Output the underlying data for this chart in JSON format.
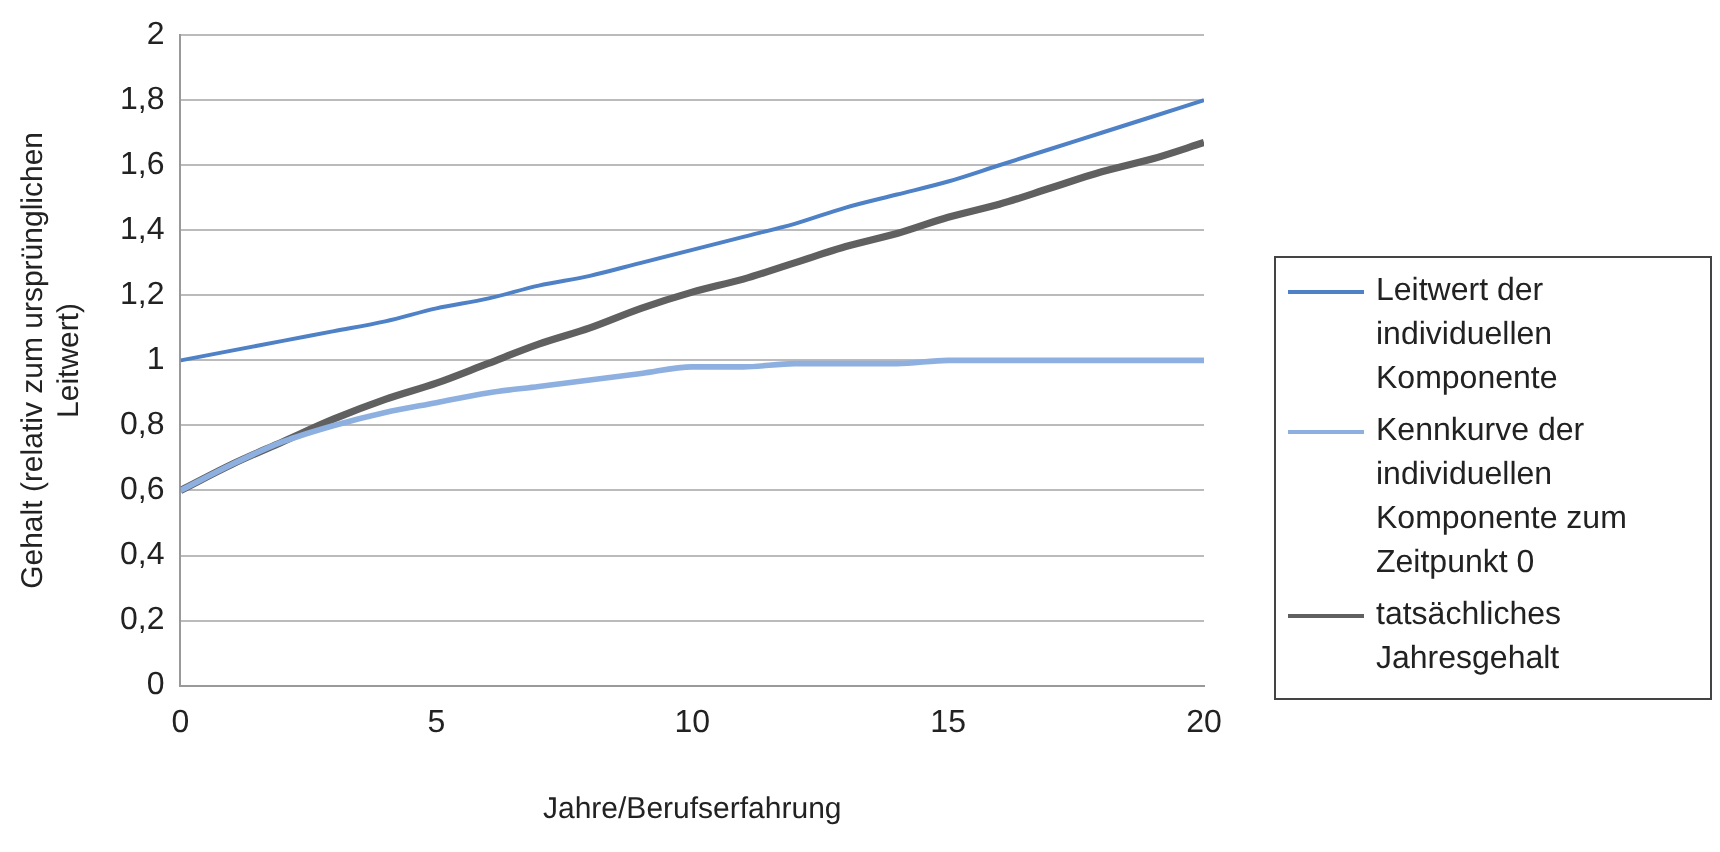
{
  "chart_data": {
    "type": "line",
    "xlabel": "Jahre/Berufserfahrung",
    "ylabel": "Gehalt (relativ zum ursprünglichen Leitwert)",
    "x": [
      0,
      1,
      2,
      3,
      4,
      5,
      6,
      7,
      8,
      9,
      10,
      11,
      12,
      13,
      14,
      15,
      16,
      17,
      18,
      19,
      20
    ],
    "xlim": [
      0,
      20
    ],
    "xticks": [
      0,
      5,
      10,
      15,
      20
    ],
    "ylim": [
      0,
      2
    ],
    "yticks": [
      0,
      {
        "value": 0.2,
        "label": "0,2"
      },
      {
        "value": 0.4,
        "label": "0,4"
      },
      {
        "value": 0.6,
        "label": "0,6"
      },
      {
        "value": 0.8,
        "label": "0,8"
      },
      1,
      {
        "value": 1.2,
        "label": "1,2"
      },
      {
        "value": 1.4,
        "label": "1,4"
      },
      {
        "value": 1.6,
        "label": "1,6"
      },
      {
        "value": 1.8,
        "label": "1,8"
      },
      2
    ],
    "grid": "y",
    "legend": "right",
    "marker": "none",
    "line_style": "solid",
    "series": [
      {
        "name": "Leitwert der individuellen Komponente",
        "color": "#4f81c7",
        "values": [
          1.0,
          1.03,
          1.06,
          1.09,
          1.12,
          1.16,
          1.19,
          1.23,
          1.26,
          1.3,
          1.34,
          1.38,
          1.42,
          1.47,
          1.51,
          1.55,
          1.6,
          1.65,
          1.7,
          1.75,
          1.8
        ]
      },
      {
        "name": "Kennkurve der individuellen Komponente zum Zeitpunkt 0",
        "color": "#8db0e0",
        "values": [
          0.6,
          0.68,
          0.75,
          0.8,
          0.84,
          0.87,
          0.9,
          0.92,
          0.94,
          0.96,
          0.98,
          0.98,
          0.99,
          0.99,
          0.99,
          1.0,
          1.0,
          1.0,
          1.0,
          1.0,
          1.0
        ]
      },
      {
        "name": "tatsächliches Jahresgehalt",
        "color": "#606060",
        "values": [
          0.6,
          0.68,
          0.75,
          0.82,
          0.88,
          0.93,
          0.99,
          1.05,
          1.1,
          1.16,
          1.21,
          1.25,
          1.3,
          1.35,
          1.39,
          1.44,
          1.48,
          1.53,
          1.58,
          1.62,
          1.67
        ]
      }
    ]
  }
}
